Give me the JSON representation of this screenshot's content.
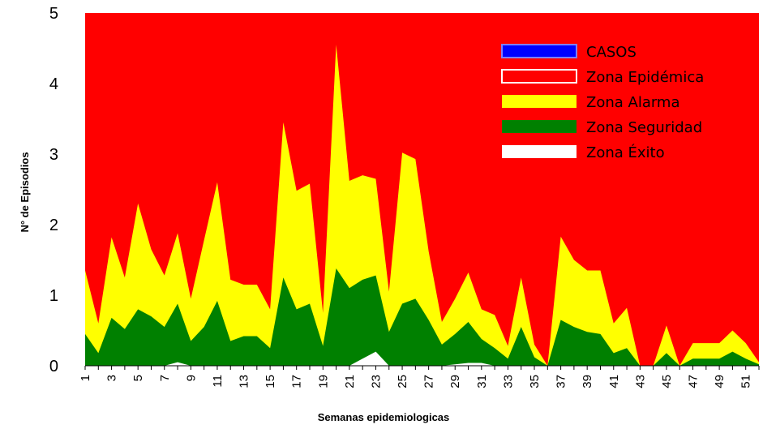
{
  "chart_data": {
    "type": "area",
    "xlabel": "Semanas epidemiologicas",
    "ylabel": "N° de Episodios",
    "ylim": [
      0,
      5
    ],
    "yticks": [
      0,
      1,
      2,
      3,
      4,
      5
    ],
    "x": [
      1,
      2,
      3,
      4,
      5,
      6,
      7,
      8,
      9,
      10,
      11,
      12,
      13,
      14,
      15,
      16,
      17,
      18,
      19,
      20,
      21,
      22,
      23,
      24,
      25,
      26,
      27,
      28,
      29,
      30,
      31,
      32,
      33,
      34,
      35,
      36,
      37,
      38,
      39,
      40,
      41,
      42,
      43,
      44,
      45,
      46,
      47,
      48,
      49,
      50,
      51,
      52
    ],
    "xtick_labels": [
      "1",
      "3",
      "5",
      "7",
      "9",
      "11",
      "13",
      "15",
      "17",
      "19",
      "21",
      "23",
      "25",
      "27",
      "29",
      "31",
      "33",
      "35",
      "37",
      "39",
      "41",
      "43",
      "45",
      "47",
      "49",
      "51"
    ],
    "legend_position": "top-right",
    "series": [
      {
        "name": "CASOS",
        "color": "#0000ff",
        "values": [
          0,
          0,
          0,
          0,
          0,
          0,
          0,
          0,
          0,
          0,
          0,
          0,
          0,
          0,
          0,
          0,
          0,
          0,
          0,
          0,
          0,
          0,
          0,
          0,
          0,
          0,
          0,
          0,
          0,
          0,
          0,
          0,
          0,
          0,
          0,
          0,
          0,
          0,
          0,
          0,
          0,
          0,
          0,
          0,
          0,
          0,
          0,
          0,
          0,
          0,
          0,
          0
        ]
      },
      {
        "name": "Zona Epidémica",
        "color": "#ff0000",
        "values": [
          5,
          5,
          5,
          5,
          5,
          5,
          5,
          5,
          5,
          5,
          5,
          5,
          5,
          5,
          5,
          5,
          5,
          5,
          5,
          5,
          5,
          5,
          5,
          5,
          5,
          5,
          5,
          5,
          5,
          5,
          5,
          5,
          5,
          5,
          5,
          5,
          5,
          5,
          5,
          5,
          5,
          5,
          5,
          5,
          5,
          5,
          5,
          5,
          5,
          5,
          5,
          5
        ]
      },
      {
        "name": "Zona Alarma",
        "color": "#ffff00",
        "values": [
          1.35,
          0.6,
          1.82,
          1.25,
          2.3,
          1.65,
          1.28,
          1.88,
          0.95,
          1.78,
          2.6,
          1.22,
          1.15,
          1.15,
          0.8,
          3.45,
          2.48,
          2.58,
          0.75,
          4.55,
          2.62,
          2.7,
          2.65,
          1.05,
          3.02,
          2.93,
          1.62,
          0.62,
          0.95,
          1.32,
          0.8,
          0.72,
          0.28,
          1.25,
          0.3,
          0.0,
          1.83,
          1.5,
          1.35,
          1.35,
          0.6,
          0.82,
          0.0,
          0.0,
          0.57,
          0.0,
          0.32,
          0.32,
          0.32,
          0.5,
          0.32,
          0.05
        ]
      },
      {
        "name": "Zona Seguridad",
        "color": "#008000",
        "values": [
          0.45,
          0.18,
          0.68,
          0.52,
          0.8,
          0.7,
          0.55,
          0.88,
          0.35,
          0.55,
          0.92,
          0.35,
          0.42,
          0.42,
          0.25,
          1.25,
          0.8,
          0.88,
          0.28,
          1.38,
          1.1,
          1.22,
          1.28,
          0.48,
          0.88,
          0.95,
          0.65,
          0.3,
          0.45,
          0.62,
          0.38,
          0.25,
          0.1,
          0.55,
          0.12,
          0.0,
          0.65,
          0.55,
          0.48,
          0.45,
          0.18,
          0.25,
          0.0,
          0.0,
          0.18,
          0.0,
          0.1,
          0.1,
          0.1,
          0.2,
          0.1,
          0.02
        ]
      },
      {
        "name": "Zona Éxito",
        "color": "#ffffff",
        "values": [
          0,
          0,
          0,
          0,
          0,
          0,
          0,
          0.05,
          0,
          0,
          0,
          0,
          0,
          0,
          0,
          0,
          0,
          0,
          0,
          0,
          0,
          0.1,
          0.2,
          0,
          0,
          0,
          0,
          0,
          0.02,
          0.04,
          0.04,
          0,
          0,
          0,
          0,
          0,
          0,
          0,
          0,
          0,
          0,
          0,
          0,
          0,
          0,
          0,
          0,
          0,
          0,
          0,
          0,
          0
        ]
      }
    ]
  }
}
